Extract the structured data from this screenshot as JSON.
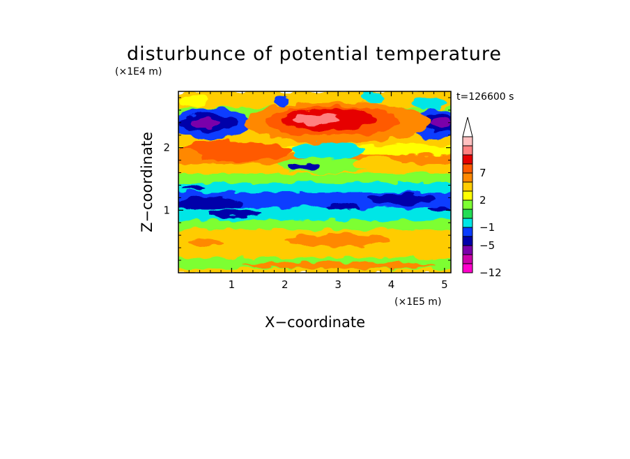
{
  "chart_data": {
    "type": "heatmap",
    "title": "disturbunce of potential temperature",
    "xlabel": "X−coordinate",
    "ylabel": "Z−coordinate",
    "x_scale_label": "(×1E5 m)",
    "y_scale_label": "(×1E4 m)",
    "time_label": "t=126600 s",
    "xlim": [
      0,
      5.12
    ],
    "ylim": [
      0,
      2.9
    ],
    "x_ticks": [
      {
        "value": 1,
        "label": "1"
      },
      {
        "value": 2,
        "label": "2"
      },
      {
        "value": 3,
        "label": "3"
      },
      {
        "value": 4,
        "label": "4"
      },
      {
        "value": 5,
        "label": "5"
      }
    ],
    "y_ticks": [
      {
        "value": 1,
        "label": "1"
      },
      {
        "value": 2,
        "label": "2"
      }
    ],
    "colorbar": {
      "levels": [
        -12,
        -10,
        -8,
        -5,
        -3,
        -1,
        0,
        1,
        2,
        4,
        5,
        7,
        8,
        9
      ],
      "labels": [
        {
          "value": 7,
          "label": "7"
        },
        {
          "value": 2,
          "label": "2"
        },
        {
          "value": -1,
          "label": "−1"
        },
        {
          "value": -5,
          "label": "−5"
        },
        {
          "value": -12,
          "label": "−12"
        }
      ],
      "colors": [
        "#ff00cc",
        "#cc00aa",
        "#7a00aa",
        "#0000aa",
        "#0a3cff",
        "#00e6e6",
        "#22dd55",
        "#7dff33",
        "#ffff00",
        "#ffcc00",
        "#ff8800",
        "#ff5a00",
        "#e60000",
        "#ff8080",
        "#ffc0c0"
      ],
      "extend": "max"
    },
    "bands": [
      {
        "z0": 0.0,
        "z1": 0.08,
        "value": 2.5
      },
      {
        "z0": 0.08,
        "z1": 0.25,
        "value": 0.6
      },
      {
        "z0": 0.25,
        "z1": 0.45,
        "value": 2.5
      },
      {
        "z0": 0.45,
        "z1": 0.7,
        "value": 3.2
      },
      {
        "z0": 0.7,
        "z1": 0.85,
        "value": 0.5
      },
      {
        "z0": 0.85,
        "z1": 1.05,
        "value": -2.0
      },
      {
        "z0": 1.05,
        "z1": 1.3,
        "value": -3.2
      },
      {
        "z0": 1.3,
        "z1": 1.45,
        "value": -1.8
      },
      {
        "z0": 1.45,
        "z1": 1.6,
        "value": 0.5
      },
      {
        "z0": 1.6,
        "z1": 1.75,
        "value": 2.5
      },
      {
        "z0": 1.75,
        "z1": 1.9,
        "value": 4.5
      },
      {
        "z0": 1.9,
        "z1": 2.05,
        "value": 1.5
      },
      {
        "z0": 2.05,
        "z1": 2.2,
        "value": 3.0
      },
      {
        "z0": 2.2,
        "z1": 2.45,
        "value": 2.5
      },
      {
        "z0": 2.45,
        "z1": 2.65,
        "value": 0.5
      },
      {
        "z0": 2.65,
        "z1": 2.9,
        "value": 2.5
      }
    ],
    "features": [
      {
        "x": 1.05,
        "z": 1.95,
        "rx": 1.05,
        "rz": 0.17,
        "value": 5.5
      },
      {
        "x": 0.15,
        "z": 1.85,
        "rx": 0.3,
        "rz": 0.12,
        "value": 4.5
      },
      {
        "x": 0.6,
        "z": 2.38,
        "rx": 0.75,
        "rz": 0.25,
        "value": -3.2
      },
      {
        "x": 0.55,
        "z": 2.4,
        "rx": 0.55,
        "rz": 0.14,
        "value": -5.5
      },
      {
        "x": 0.5,
        "z": 2.4,
        "rx": 0.28,
        "rz": 0.07,
        "value": -9.0
      },
      {
        "x": 4.85,
        "z": 2.38,
        "rx": 0.5,
        "rz": 0.25,
        "value": -3.2
      },
      {
        "x": 4.9,
        "z": 2.4,
        "rx": 0.35,
        "rz": 0.14,
        "value": -5.5
      },
      {
        "x": 4.95,
        "z": 2.4,
        "rx": 0.2,
        "rz": 0.07,
        "value": -9.0
      },
      {
        "x": 3.0,
        "z": 2.4,
        "rx": 1.75,
        "rz": 0.33,
        "value": 4.5
      },
      {
        "x": 2.9,
        "z": 2.42,
        "rx": 1.25,
        "rz": 0.24,
        "value": 5.5
      },
      {
        "x": 2.8,
        "z": 2.45,
        "rx": 0.9,
        "rz": 0.17,
        "value": 7.5
      },
      {
        "x": 2.6,
        "z": 2.45,
        "rx": 0.45,
        "rz": 0.08,
        "value": 8.5
      },
      {
        "x": 1.95,
        "z": 2.75,
        "rx": 0.12,
        "rz": 0.1,
        "value": -3.2
      },
      {
        "x": 3.65,
        "z": 2.8,
        "rx": 0.22,
        "rz": 0.09,
        "value": -2.0
      },
      {
        "x": 4.7,
        "z": 2.72,
        "rx": 0.3,
        "rz": 0.1,
        "value": -1.5
      },
      {
        "x": 0.3,
        "z": 2.75,
        "rx": 0.25,
        "rz": 0.1,
        "value": 1.5
      },
      {
        "x": 2.8,
        "z": 1.95,
        "rx": 0.7,
        "rz": 0.14,
        "value": -1.5
      },
      {
        "x": 2.75,
        "z": 1.72,
        "rx": 0.9,
        "rz": 0.12,
        "value": 0.5
      },
      {
        "x": 2.35,
        "z": 1.7,
        "rx": 0.3,
        "rz": 0.06,
        "value": -5.5
      },
      {
        "x": 3.75,
        "z": 1.75,
        "rx": 0.45,
        "rz": 0.1,
        "value": 3.5
      },
      {
        "x": 0.5,
        "z": 1.1,
        "rx": 0.7,
        "rz": 0.09,
        "value": -5.5
      },
      {
        "x": 1.05,
        "z": 0.95,
        "rx": 0.5,
        "rz": 0.06,
        "value": -5.5
      },
      {
        "x": 3.1,
        "z": 1.05,
        "rx": 0.3,
        "rz": 0.04,
        "value": -5.5
      },
      {
        "x": 4.2,
        "z": 1.18,
        "rx": 0.6,
        "rz": 0.08,
        "value": -5.5
      },
      {
        "x": 4.9,
        "z": 1.0,
        "rx": 0.25,
        "rz": 0.05,
        "value": -5.5
      },
      {
        "x": 0.3,
        "z": 1.35,
        "rx": 0.2,
        "rz": 0.04,
        "value": -5.5
      },
      {
        "x": 3.0,
        "z": 0.52,
        "rx": 1.0,
        "rz": 0.1,
        "value": 4.5
      },
      {
        "x": 3.0,
        "z": 0.12,
        "rx": 1.8,
        "rz": 0.05,
        "value": 4.5
      },
      {
        "x": 0.5,
        "z": 0.48,
        "rx": 0.3,
        "rz": 0.06,
        "value": 4.5
      },
      {
        "x": 1.2,
        "z": 0.8,
        "rx": 0.2,
        "rz": 0.05,
        "value": 0.5
      }
    ]
  }
}
